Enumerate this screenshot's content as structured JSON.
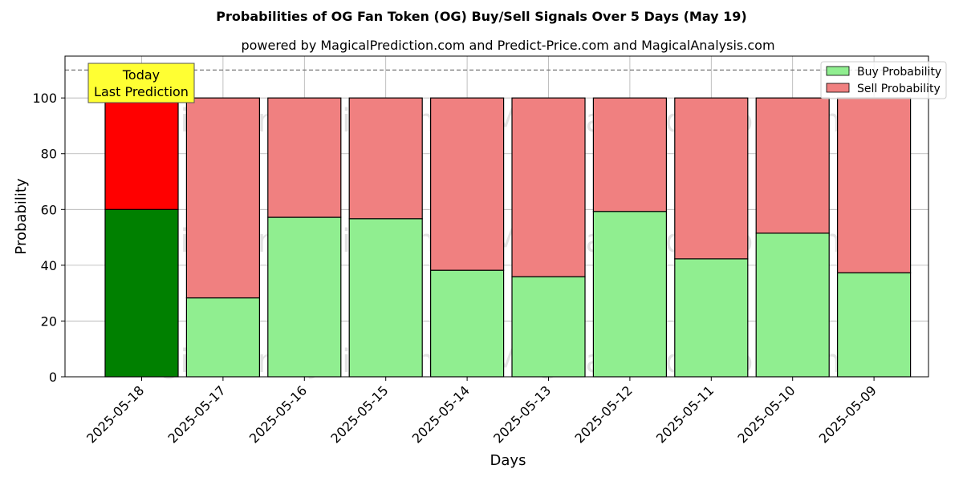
{
  "chart_data": {
    "type": "bar",
    "stacked": true,
    "title": "Probabilities of OG Fan Token (OG) Buy/Sell Signals Over 5 Days (May 19)",
    "subtitle": "powered by MagicalPrediction.com and Predict-Price.com and MagicalAnalysis.com",
    "xlabel": "Days",
    "ylabel": "Probability",
    "ylim": [
      0,
      115
    ],
    "yticks": [
      0,
      20,
      40,
      60,
      80,
      100
    ],
    "grid": true,
    "legend_position": "top-right",
    "reference_line": 110,
    "categories": [
      "2025-05-18",
      "2025-05-17",
      "2025-05-16",
      "2025-05-15",
      "2025-05-14",
      "2025-05-13",
      "2025-05-12",
      "2025-05-11",
      "2025-05-10",
      "2025-05-09"
    ],
    "series": [
      {
        "name": "Buy Probability",
        "color": "#90ee90",
        "highlight_color": "#008000",
        "values": [
          60.0,
          28.3,
          57.2,
          56.7,
          38.2,
          35.9,
          59.3,
          42.3,
          51.5,
          37.3
        ]
      },
      {
        "name": "Sell Probability",
        "color": "#f08080",
        "highlight_color": "#ff0000",
        "values": [
          40.0,
          71.7,
          42.8,
          43.3,
          61.8,
          64.1,
          40.7,
          57.7,
          48.5,
          62.7
        ]
      }
    ],
    "annotation": {
      "lines": [
        "Today",
        "Last Prediction"
      ],
      "background": "#ffff33"
    },
    "watermarks": [
      "MagicalAnalysis.com",
      "MagicalPrediction.com"
    ]
  }
}
